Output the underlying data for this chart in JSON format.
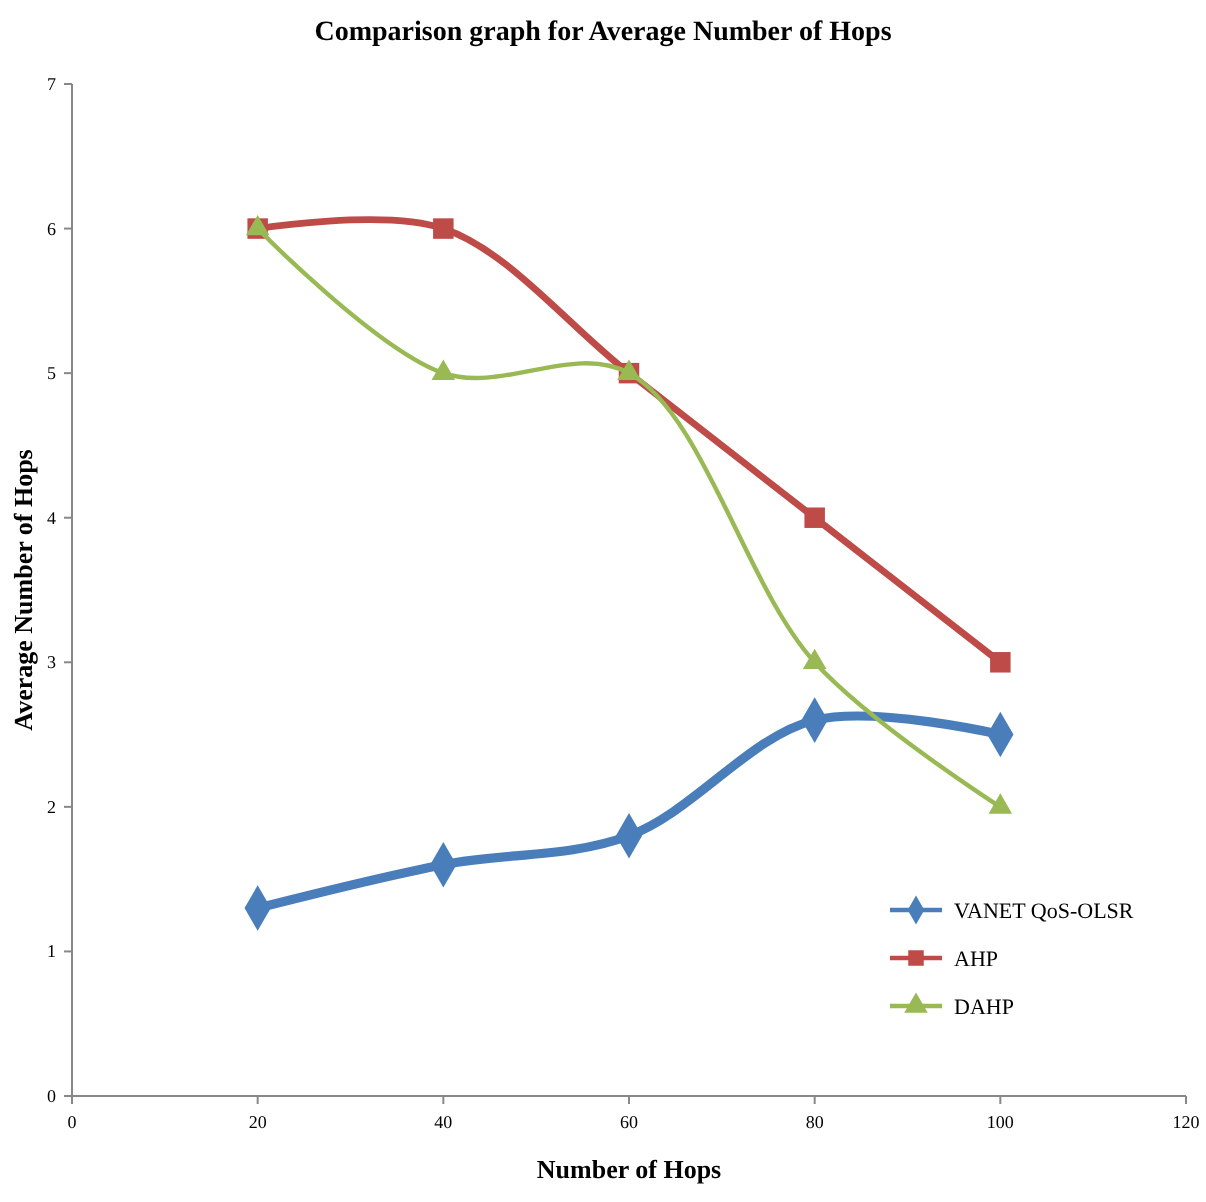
{
  "chart_data": {
    "type": "line",
    "title": "Comparison graph for Average Number of Hops",
    "xlabel": "Number of Hops",
    "ylabel": "Average Number of Hops",
    "x": [
      20,
      40,
      60,
      80,
      100
    ],
    "xlim": [
      0,
      120
    ],
    "xticks": [
      0,
      20,
      40,
      60,
      80,
      100,
      120
    ],
    "ylim": [
      0,
      7
    ],
    "yticks": [
      0,
      1,
      2,
      3,
      4,
      5,
      6,
      7
    ],
    "grid": false,
    "legend": "right",
    "series": [
      {
        "name": "VANET QoS-OLSR",
        "color": "#4a7ebb",
        "marker": "diamond",
        "values": [
          1.3,
          1.6,
          1.8,
          2.6,
          2.5
        ]
      },
      {
        "name": "AHP",
        "color": "#be4b48",
        "marker": "square",
        "values": [
          6,
          6,
          5,
          4,
          3
        ]
      },
      {
        "name": "DAHP",
        "color": "#98b954",
        "marker": "triangle",
        "values": [
          6,
          5,
          5,
          3,
          2
        ]
      }
    ]
  }
}
